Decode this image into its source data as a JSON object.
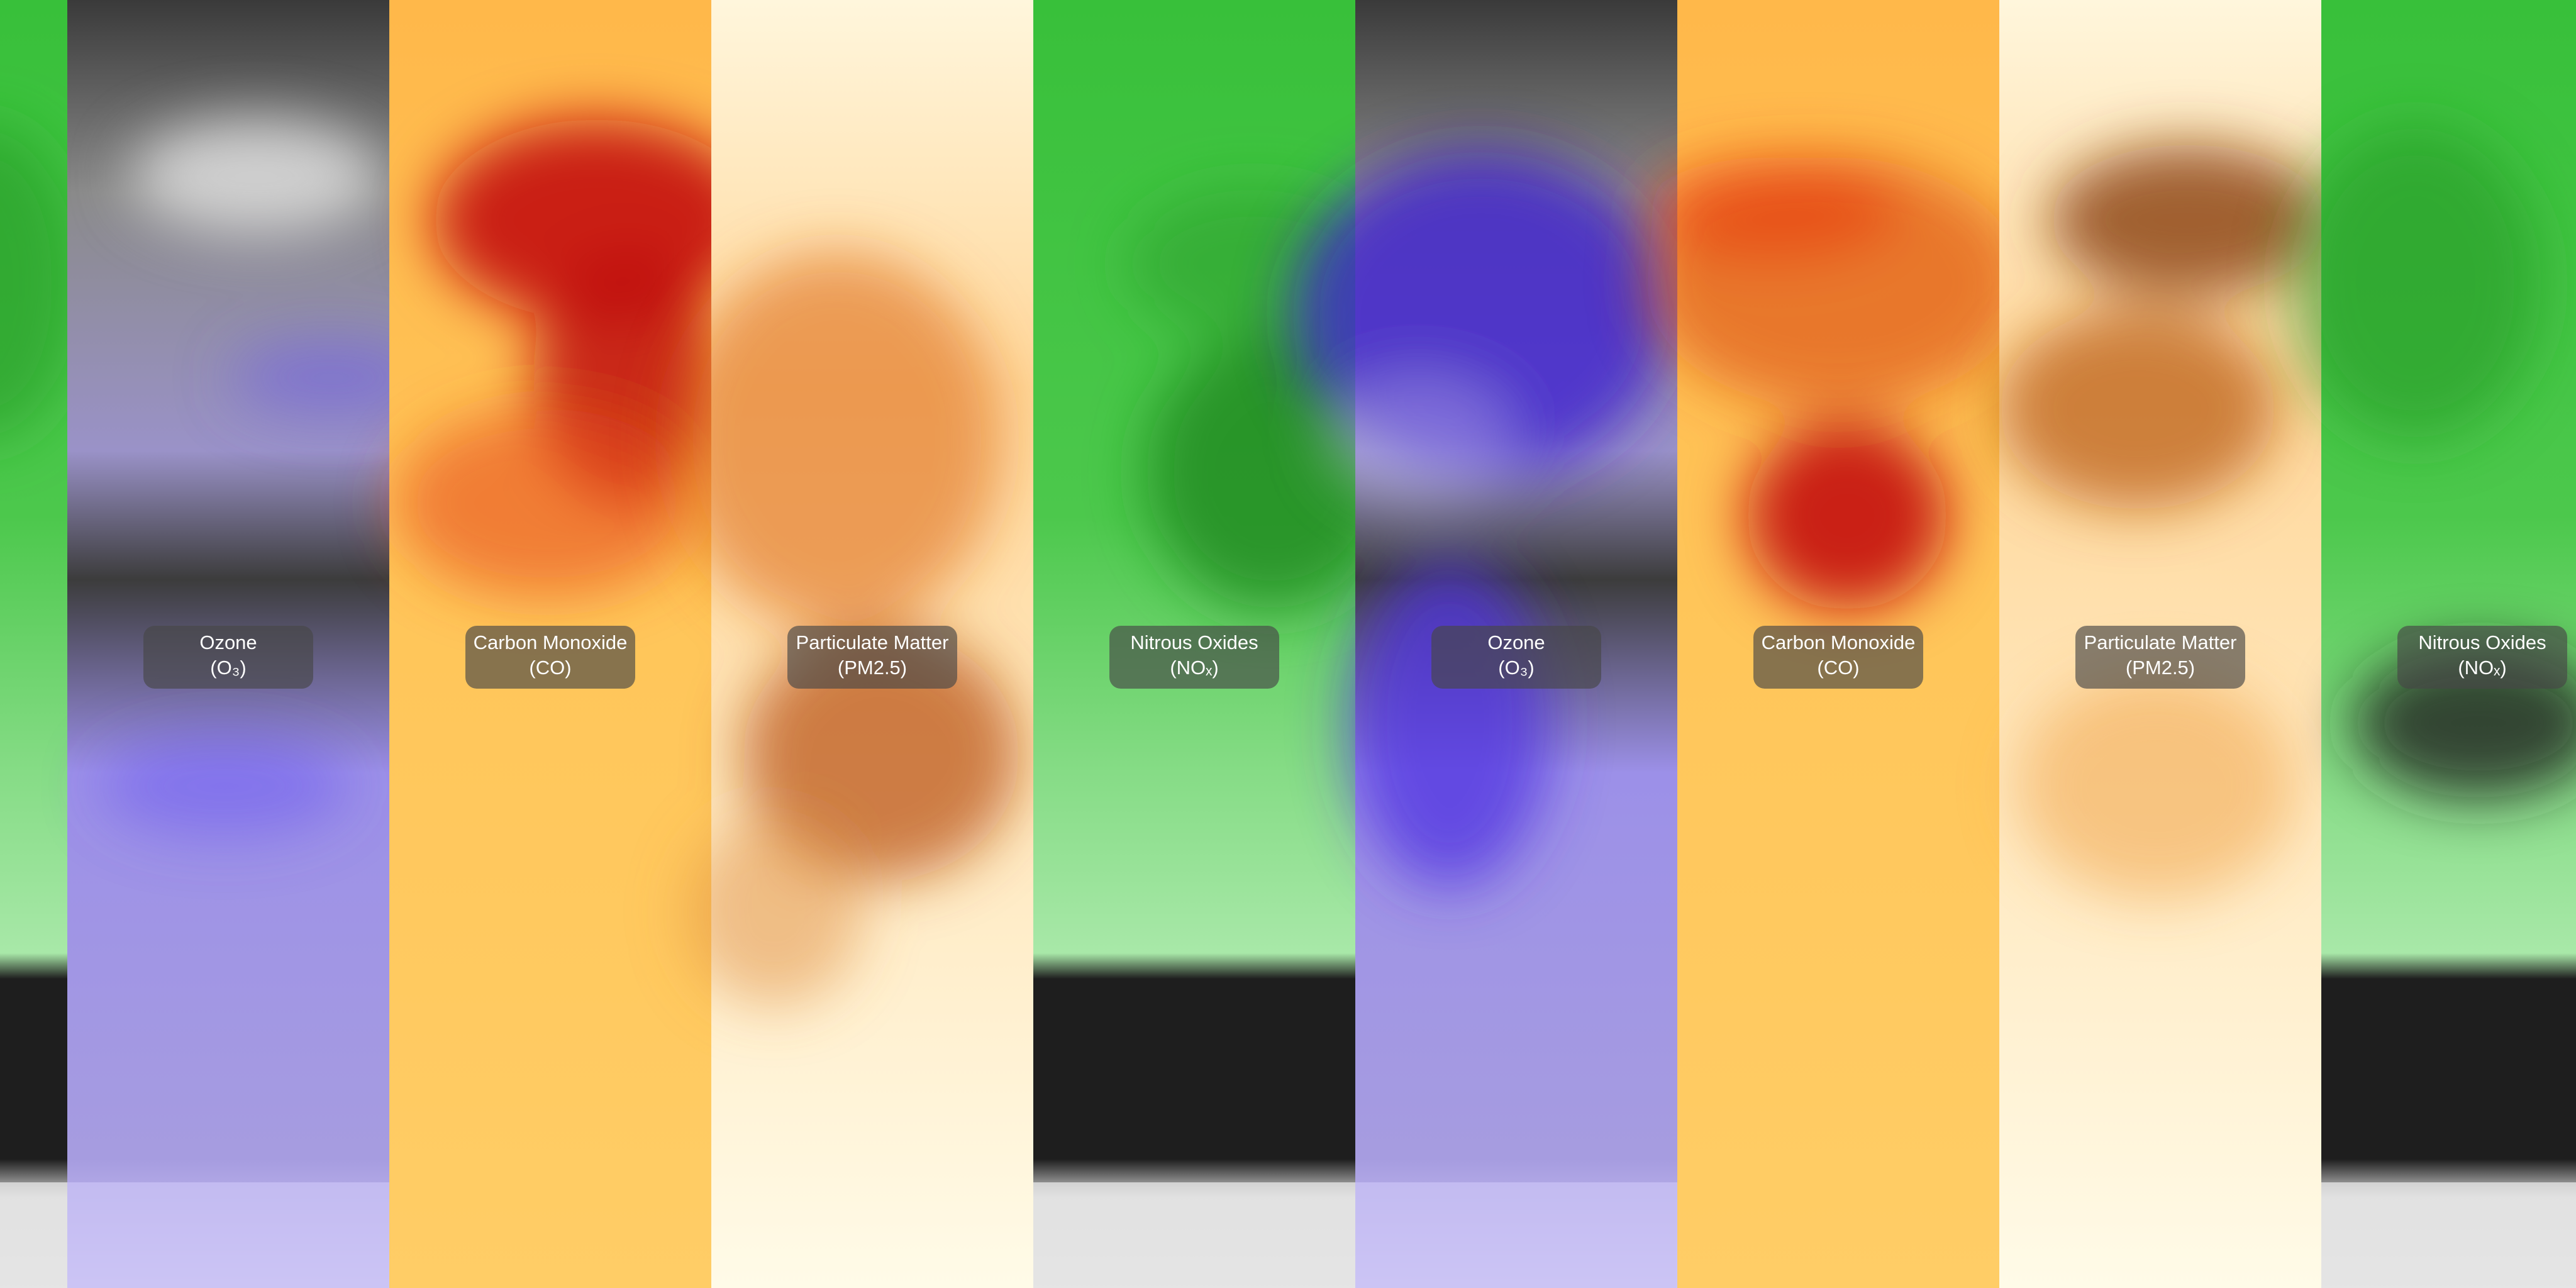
{
  "labels": [
    {
      "name": "Ozone",
      "formula": "(O₃)"
    },
    {
      "name": "Carbon Monoxide",
      "formula": "(CO)"
    },
    {
      "name": "Particulate Matter",
      "formula": "(PM2.5)"
    },
    {
      "name": "Nitrous Oxides",
      "formula": "(NOₓ)"
    },
    {
      "name": "Ozone",
      "formula": "(O₃)"
    },
    {
      "name": "Carbon Monoxide",
      "formula": "(CO)"
    },
    {
      "name": "Particulate Matter",
      "formula": "(PM2.5)"
    },
    {
      "name": "Nitrous Oxides",
      "formula": "(NOₓ)"
    }
  ]
}
